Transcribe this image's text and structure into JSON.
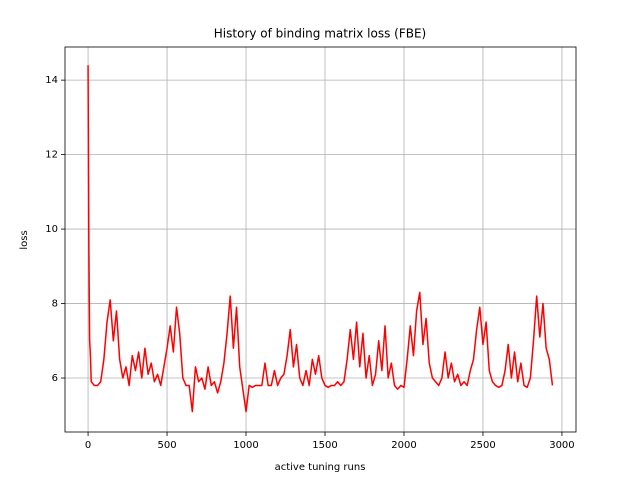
{
  "chart_data": {
    "type": "line",
    "title": "History of binding matrix loss (FBE)",
    "xlabel": "active tuning runs",
    "ylabel": "loss",
    "x": [
      0,
      5,
      10,
      15,
      20,
      40,
      60,
      80,
      100,
      120,
      140,
      160,
      180,
      200,
      220,
      240,
      260,
      280,
      300,
      320,
      340,
      360,
      380,
      400,
      420,
      440,
      460,
      480,
      500,
      520,
      540,
      560,
      580,
      600,
      620,
      640,
      660,
      680,
      700,
      720,
      740,
      760,
      780,
      800,
      820,
      840,
      860,
      880,
      900,
      920,
      940,
      960,
      980,
      1000,
      1020,
      1040,
      1060,
      1080,
      1100,
      1120,
      1140,
      1160,
      1180,
      1200,
      1220,
      1240,
      1260,
      1280,
      1300,
      1320,
      1340,
      1360,
      1380,
      1400,
      1420,
      1440,
      1460,
      1480,
      1500,
      1520,
      1540,
      1560,
      1580,
      1600,
      1620,
      1640,
      1660,
      1680,
      1700,
      1720,
      1740,
      1760,
      1780,
      1800,
      1820,
      1840,
      1860,
      1880,
      1900,
      1920,
      1940,
      1960,
      1980,
      2000,
      2020,
      2040,
      2060,
      2080,
      2100,
      2120,
      2140,
      2160,
      2180,
      2200,
      2220,
      2240,
      2260,
      2280,
      2300,
      2320,
      2340,
      2360,
      2380,
      2400,
      2420,
      2440,
      2460,
      2480,
      2500,
      2520,
      2540,
      2560,
      2580,
      2600,
      2620,
      2640,
      2660,
      2680,
      2700,
      2720,
      2740,
      2760,
      2780,
      2800,
      2820,
      2840,
      2860,
      2880,
      2900,
      2920,
      2940
    ],
    "series": [
      {
        "color": "#ff0000",
        "values": [
          14.4,
          9.5,
          7.0,
          6.6,
          5.9,
          5.8,
          5.8,
          5.9,
          6.5,
          7.5,
          8.1,
          7.0,
          7.8,
          6.5,
          6.0,
          6.3,
          5.8,
          6.6,
          6.2,
          6.7,
          6.0,
          6.8,
          6.1,
          6.4,
          5.9,
          6.1,
          5.8,
          6.3,
          6.8,
          7.4,
          6.7,
          7.9,
          7.2,
          6.0,
          5.8,
          5.8,
          5.1,
          6.3,
          5.9,
          6.0,
          5.7,
          6.3,
          5.8,
          5.9,
          5.6,
          5.9,
          6.4,
          7.2,
          8.2,
          6.8,
          7.9,
          6.3,
          5.7,
          5.1,
          5.8,
          5.75,
          5.8,
          5.8,
          5.8,
          6.4,
          5.8,
          5.8,
          6.2,
          5.8,
          6.0,
          6.1,
          6.6,
          7.3,
          6.3,
          6.9,
          6.0,
          5.8,
          6.2,
          5.8,
          6.5,
          6.1,
          6.6,
          6.0,
          5.8,
          5.75,
          5.8,
          5.8,
          5.9,
          5.8,
          5.9,
          6.5,
          7.3,
          6.5,
          7.5,
          6.3,
          7.2,
          6.0,
          6.6,
          5.8,
          6.1,
          7.0,
          6.2,
          7.4,
          6.0,
          6.4,
          5.8,
          5.7,
          5.8,
          5.75,
          6.5,
          7.4,
          6.6,
          7.8,
          8.3,
          6.9,
          7.6,
          6.4,
          6.0,
          5.9,
          5.8,
          6.0,
          6.7,
          6.0,
          6.4,
          5.9,
          6.1,
          5.8,
          5.9,
          5.8,
          6.2,
          6.5,
          7.3,
          7.9,
          6.9,
          7.5,
          6.2,
          5.9,
          5.8,
          5.75,
          5.8,
          6.2,
          6.9,
          6.0,
          6.7,
          5.9,
          6.4,
          5.8,
          5.75,
          6.0,
          7.0,
          8.2,
          7.1,
          8.0,
          6.8,
          6.5,
          5.8
        ]
      }
    ],
    "xlim": [
      -146,
      3089
    ],
    "ylim": [
      4.55,
      14.89
    ],
    "xticks": [
      0,
      500,
      1000,
      1500,
      2000,
      2500,
      3000
    ],
    "yticks": [
      6,
      8,
      10,
      12,
      14
    ],
    "grid": true
  }
}
